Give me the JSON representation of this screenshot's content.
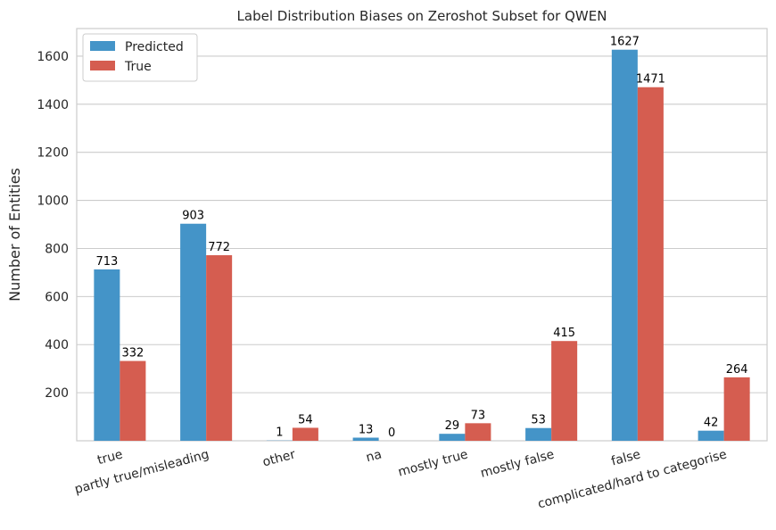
{
  "chart_data": {
    "type": "bar",
    "title": "Label Distribution Biases on Zeroshot Subset for QWEN",
    "xlabel": "",
    "ylabel": "Number of Entities",
    "categories": [
      "true",
      "partly true/misleading",
      "other",
      "na",
      "mostly true",
      "mostly false",
      "false",
      "complicated/hard to categorise"
    ],
    "series": [
      {
        "name": "Predicted",
        "color": "#4494c8",
        "values": [
          713,
          903,
          1,
          13,
          29,
          53,
          1627,
          42
        ]
      },
      {
        "name": "True",
        "color": "#d55d50",
        "values": [
          332,
          772,
          54,
          0,
          73,
          415,
          1471,
          264
        ]
      }
    ],
    "ylim": [
      0,
      1715
    ],
    "yticks": [
      200,
      400,
      600,
      800,
      1000,
      1200,
      1400,
      1600
    ],
    "grid": true,
    "legend_position": "top-left"
  }
}
